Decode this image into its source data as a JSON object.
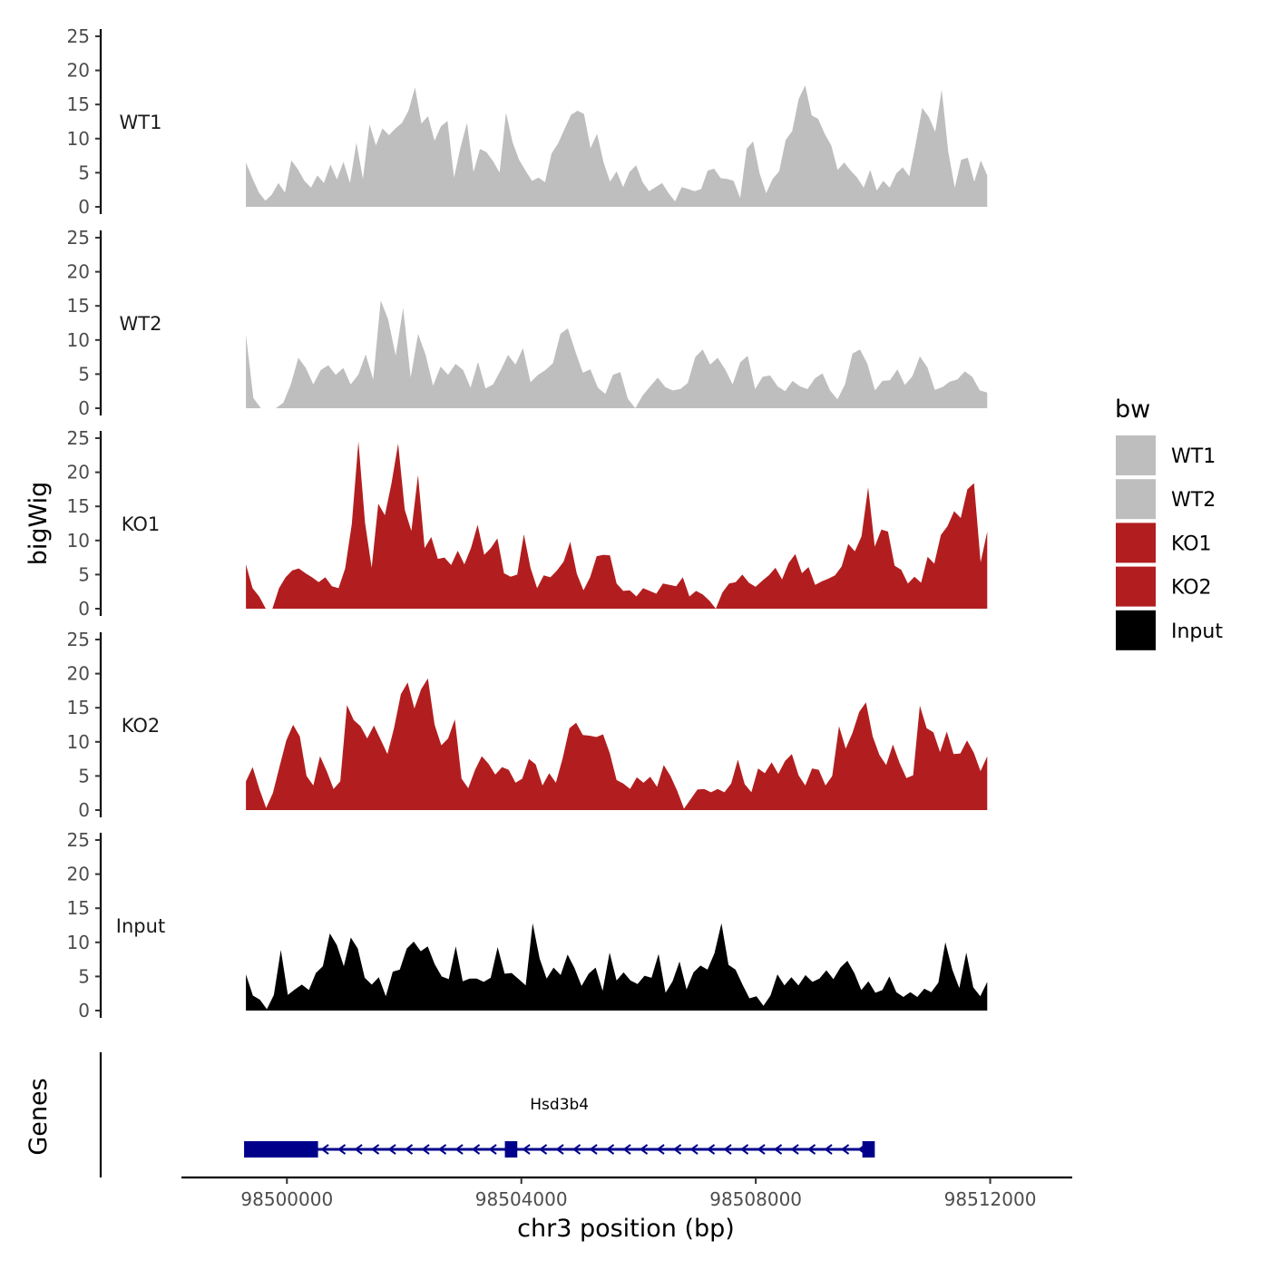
{
  "chart_data": {
    "type": "area",
    "ylabel": "bigWig",
    "xlabel": "chr3 position (bp)",
    "genes_label": "Genes",
    "ylim": [
      0,
      25
    ],
    "yticks": [
      0,
      5,
      10,
      15,
      20,
      25
    ],
    "xlim": [
      98498200,
      98513400
    ],
    "xticks": [
      98500000,
      98504000,
      98508000,
      98512000
    ],
    "data_range": [
      98499300,
      98511950
    ],
    "legend": {
      "title": "bw",
      "position": "right",
      "entries": [
        {
          "label": "WT1",
          "color": "#bebebe"
        },
        {
          "label": "WT2",
          "color": "#bebebe"
        },
        {
          "label": "KO1",
          "color": "#b21e1f"
        },
        {
          "label": "KO2",
          "color": "#b21e1f"
        },
        {
          "label": "Input",
          "color": "#000000"
        }
      ]
    },
    "series": [
      {
        "name": "WT1",
        "color": "#bebebe",
        "values": [
          6.5,
          4.2,
          2.1,
          0.9,
          1.8,
          3.5,
          2.1,
          6.8,
          5.5,
          3.8,
          2.8,
          4.6,
          3.5,
          6.2,
          4.0,
          6.6,
          3.5,
          9.4,
          4.1,
          12.1,
          9.0,
          11.5,
          10.5,
          11.5,
          12.3,
          14.1,
          17.5,
          12.2,
          13.3,
          9.7,
          11.8,
          12.6,
          4.3,
          8.7,
          12.3,
          5.1,
          8.5,
          8.0,
          6.7,
          5.0,
          13.8,
          9.5,
          6.9,
          5.3,
          3.8,
          4.3,
          3.6,
          7.8,
          9.3,
          11.4,
          13.5,
          14.1,
          13.6,
          8.6,
          10.7,
          6.5,
          3.7,
          5.2,
          2.9,
          5.1,
          6.1,
          3.6,
          2.3,
          2.9,
          3.5,
          2.0,
          0.8,
          2.9,
          2.6,
          2.3,
          2.6,
          5.3,
          5.6,
          4.2,
          4.1,
          3.8,
          1.3,
          8.5,
          9.6,
          4.9,
          2.0,
          4.1,
          5.2,
          9.8,
          11.1,
          15.8,
          17.8,
          13.4,
          12.9,
          10.7,
          9.0,
          5.4,
          6.5,
          5.3,
          4.3,
          2.8,
          5.4,
          2.4,
          3.8,
          2.8,
          4.9,
          5.8,
          4.5,
          9.3,
          14.5,
          13.2,
          11.0,
          17.2,
          8.1,
          2.8,
          6.9,
          7.2,
          3.7,
          6.8,
          4.6
        ]
      },
      {
        "name": "WT2",
        "color": "#bebebe",
        "values": [
          10.8,
          1.5,
          0.0,
          0.0,
          0.0,
          0.8,
          3.5,
          7.4,
          5.9,
          3.5,
          5.6,
          6.3,
          4.9,
          5.9,
          3.5,
          4.9,
          7.9,
          4.2,
          15.8,
          13.0,
          7.7,
          14.7,
          4.5,
          10.9,
          7.8,
          3.3,
          6.1,
          4.9,
          6.5,
          5.6,
          3.0,
          6.8,
          2.9,
          3.5,
          5.5,
          7.8,
          6.4,
          8.8,
          3.8,
          4.9,
          5.6,
          6.6,
          10.9,
          11.7,
          8.3,
          5.2,
          5.7,
          3.0,
          2.1,
          4.9,
          5.3,
          1.4,
          0.0,
          1.9,
          3.2,
          4.5,
          3.1,
          2.6,
          2.8,
          3.7,
          7.5,
          8.6,
          6.4,
          7.4,
          5.7,
          3.5,
          6.7,
          7.7,
          2.8,
          4.6,
          4.8,
          3.2,
          2.5,
          4.0,
          3.2,
          2.8,
          4.4,
          5.1,
          2.6,
          1.3,
          3.5,
          8.0,
          8.6,
          6.5,
          2.6,
          4.0,
          4.1,
          5.7,
          3.4,
          4.7,
          7.6,
          6.0,
          2.7,
          3.1,
          3.9,
          4.2,
          5.4,
          4.6,
          2.6,
          2.3
        ]
      },
      {
        "name": "KO1",
        "color": "#b21e1f",
        "values": [
          6.5,
          3.0,
          1.8,
          0.0,
          0.0,
          3.0,
          4.6,
          5.6,
          5.9,
          5.2,
          4.6,
          3.9,
          4.6,
          3.3,
          3.0,
          5.9,
          12.4,
          24.5,
          12.6,
          6.0,
          15.4,
          13.7,
          18.4,
          24.2,
          14.5,
          11.4,
          19.6,
          8.9,
          10.5,
          7.3,
          7.5,
          6.4,
          8.5,
          6.5,
          8.9,
          12.3,
          7.9,
          8.9,
          10.3,
          5.2,
          4.7,
          5.0,
          10.9,
          6.0,
          3.0,
          4.9,
          4.6,
          5.6,
          6.9,
          9.8,
          5.1,
          2.7,
          4.6,
          7.7,
          7.9,
          7.8,
          3.7,
          2.6,
          2.7,
          1.8,
          3.0,
          2.6,
          2.2,
          3.7,
          3.5,
          3.3,
          4.6,
          1.8,
          2.6,
          2.1,
          1.2,
          0.0,
          2.4,
          3.7,
          3.9,
          5.0,
          3.8,
          3.2,
          4.1,
          4.9,
          6.0,
          4.3,
          6.7,
          8.0,
          5.2,
          6.1,
          3.5,
          4.0,
          4.4,
          4.9,
          6.2,
          9.5,
          8.4,
          10.6,
          17.8,
          9.1,
          11.6,
          11.3,
          6.3,
          5.7,
          3.7,
          4.7,
          3.8,
          7.6,
          6.6,
          10.8,
          12.1,
          14.3,
          13.3,
          17.5,
          18.4,
          6.8,
          11.3
        ]
      },
      {
        "name": "KO2",
        "color": "#b21e1f",
        "values": [
          4.2,
          6.3,
          3.1,
          0.3,
          2.5,
          6.4,
          10.2,
          12.5,
          10.8,
          5.0,
          3.6,
          7.9,
          5.7,
          3.1,
          4.2,
          15.4,
          13.2,
          12.3,
          10.5,
          12.4,
          10.3,
          8.2,
          12.1,
          17.0,
          18.7,
          14.9,
          17.7,
          19.3,
          12.5,
          9.5,
          10.5,
          13.3,
          4.6,
          3.2,
          5.9,
          7.9,
          6.8,
          5.2,
          6.3,
          5.9,
          4.0,
          4.6,
          7.5,
          6.7,
          3.6,
          5.4,
          4.0,
          7.6,
          12.0,
          12.8,
          11.0,
          10.9,
          10.7,
          11.1,
          8.3,
          4.4,
          3.9,
          3.1,
          4.8,
          4.0,
          4.9,
          3.4,
          6.6,
          5.0,
          2.8,
          0.2,
          1.6,
          3.0,
          3.1,
          2.6,
          3.1,
          2.6,
          3.9,
          7.4,
          3.8,
          2.6,
          6.1,
          5.4,
          7.0,
          5.3,
          7.2,
          8.2,
          5.1,
          3.6,
          6.1,
          5.9,
          3.6,
          5.0,
          12.3,
          9.0,
          11.3,
          14.4,
          15.8,
          10.8,
          8.1,
          6.6,
          9.6,
          6.9,
          4.7,
          5.1,
          15.3,
          12.0,
          11.4,
          8.5,
          11.5,
          8.2,
          8.3,
          10.2,
          8.4,
          5.7,
          7.9
        ]
      },
      {
        "name": "Input",
        "color": "#000000",
        "values": [
          5.3,
          2.2,
          1.6,
          0.2,
          2.3,
          8.9,
          2.3,
          3.1,
          3.8,
          3.0,
          5.5,
          6.5,
          11.3,
          9.6,
          6.5,
          10.7,
          9.1,
          4.8,
          3.8,
          4.9,
          2.1,
          5.7,
          6.0,
          9.1,
          10.1,
          8.7,
          9.4,
          6.8,
          5.0,
          4.6,
          9.4,
          4.3,
          4.7,
          4.7,
          4.2,
          4.8,
          9.3,
          5.4,
          5.5,
          4.6,
          3.7,
          12.8,
          7.6,
          4.7,
          6.3,
          5.2,
          8.2,
          6.2,
          3.6,
          5.4,
          6.3,
          2.9,
          8.5,
          4.4,
          5.6,
          4.4,
          3.9,
          5.1,
          4.8,
          8.3,
          2.6,
          4.3,
          7.2,
          3.1,
          5.6,
          6.6,
          6.0,
          8.4,
          12.8,
          6.7,
          6.0,
          3.8,
          1.8,
          2.1,
          0.7,
          2.2,
          5.3,
          3.7,
          4.9,
          3.7,
          5.2,
          4.2,
          4.7,
          5.9,
          4.6,
          6.3,
          7.3,
          5.5,
          3.0,
          4.3,
          2.6,
          3.0,
          5.0,
          2.7,
          2.0,
          2.7,
          2.0,
          3.2,
          2.7,
          4.1,
          10.0,
          6.0,
          3.3,
          8.5,
          3.4,
          2.1,
          4.2
        ]
      }
    ],
    "genes": [
      {
        "name": "Hsd3b4",
        "start": 98499300,
        "end": 98510000,
        "strand": "-",
        "exons": [
          [
            98499300,
            98500500
          ],
          [
            98503750,
            98503900
          ],
          [
            98509850,
            98510000
          ]
        ],
        "color": "#00008b"
      }
    ]
  }
}
